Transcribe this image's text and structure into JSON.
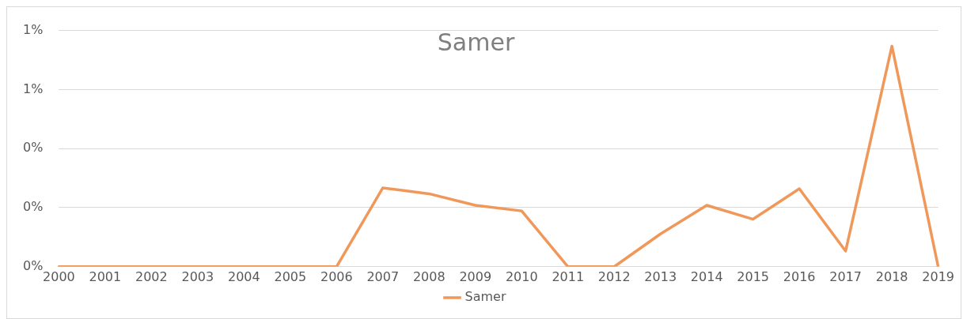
{
  "chart_data": {
    "type": "line",
    "title": "Samer",
    "categories": [
      "2000",
      "2001",
      "2002",
      "2003",
      "2004",
      "2005",
      "2006",
      "2007",
      "2008",
      "2009",
      "2010",
      "2011",
      "2012",
      "2013",
      "2014",
      "2015",
      "2016",
      "2017",
      "2018",
      "2019"
    ],
    "series": [
      {
        "name": "Samer",
        "color": "#f0975a",
        "values": [
          0,
          0,
          0,
          0,
          0,
          0,
          0,
          0.267,
          0.247,
          0.208,
          0.189,
          0,
          0,
          0.111,
          0.208,
          0.161,
          0.264,
          0.053,
          0.747,
          0
        ]
      }
    ],
    "ylim": [
      0,
      0.8
    ],
    "yticks": [
      {
        "value": 0,
        "label": "0%"
      },
      {
        "value": 0.2,
        "label": "0%"
      },
      {
        "value": 0.4,
        "label": "0%"
      },
      {
        "value": 0.6,
        "label": "1%"
      },
      {
        "value": 0.8,
        "label": "1%"
      }
    ],
    "grid": "y",
    "legend": "bottom",
    "marker": "none",
    "line_style": "solid"
  }
}
